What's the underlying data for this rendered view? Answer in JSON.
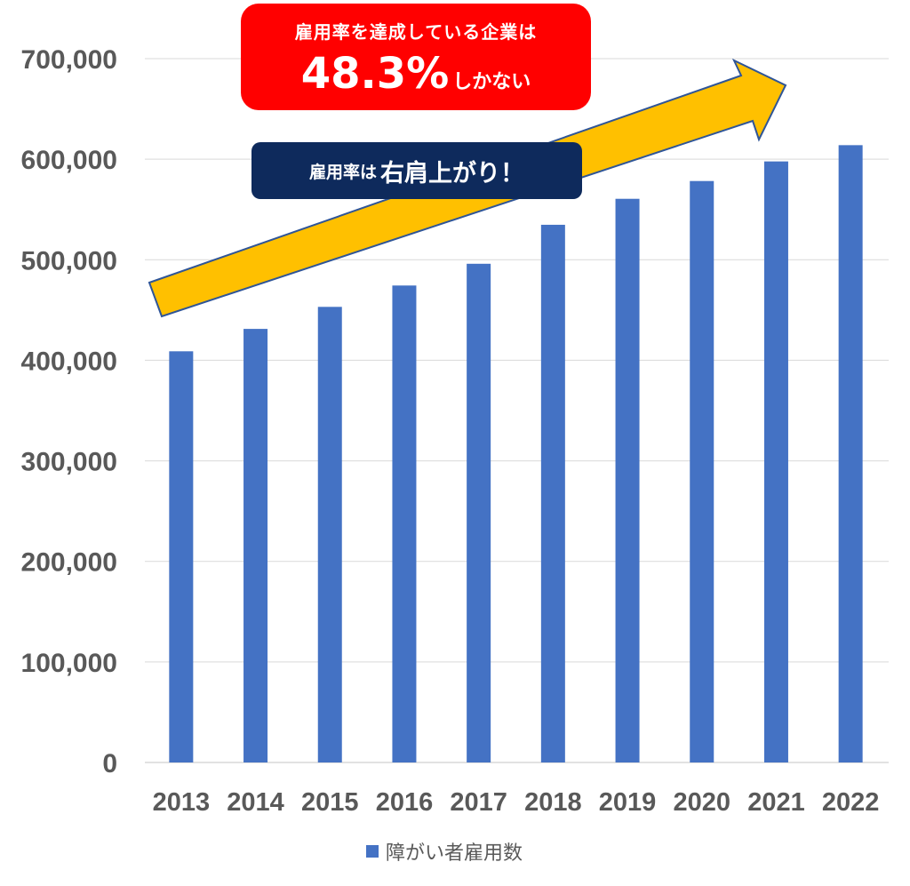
{
  "colors": {
    "bar": "#4472C4",
    "gridline": "#D9D9D9",
    "axis_text": "#595959",
    "arrow_fill": "#FFC000",
    "arrow_stroke": "#2F5597",
    "callout_red": "#FF0000",
    "callout_navy": "#0E2A5C"
  },
  "chart_data": {
    "type": "bar",
    "categories": [
      "2013",
      "2014",
      "2015",
      "2016",
      "2017",
      "2018",
      "2019",
      "2020",
      "2021",
      "2022"
    ],
    "series": [
      {
        "name": "障がい者雇用数",
        "values": [
          408947,
          431225,
          453134,
          474374,
          496000,
          534770,
          560608,
          578292,
          597786,
          613958
        ]
      }
    ],
    "ylim": [
      0,
      700000
    ],
    "yticks": [
      "0",
      "100,000",
      "200,000",
      "300,000",
      "400,000",
      "500,000",
      "600,000",
      "700,000"
    ],
    "grid": true,
    "legend_position": "bottom",
    "title": "",
    "xlabel": "",
    "ylabel": ""
  },
  "annotations": {
    "red_callout": {
      "line1": "雇用率を達成している企業は",
      "big": "48.3%",
      "small": "しかない"
    },
    "navy_callout": {
      "part_a": "雇用率は",
      "part_b": "右肩上がり！"
    },
    "arrow_icon": "up-right-arrow"
  }
}
